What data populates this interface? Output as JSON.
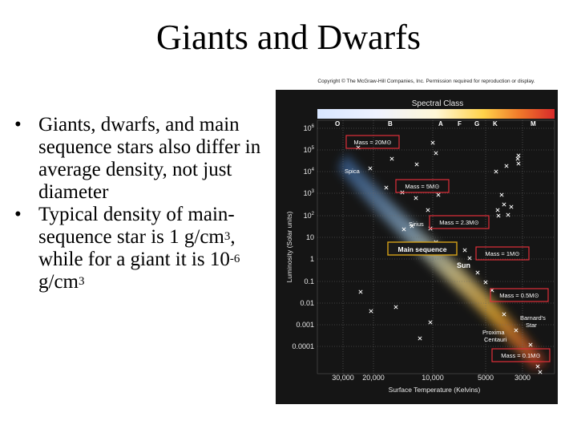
{
  "title": "Giants and Dwarfs",
  "bullets": [
    {
      "text": "Giants, dwarfs, and main sequence stars also differ in average density, not just diameter"
    },
    {
      "pre1": "Typical density of main-sequence star is 1 g/cm",
      "sup1": "3",
      "pre2": ", while for a giant it is 10",
      "sup2": "-6",
      "pre3": " g/cm",
      "sup3": "3"
    }
  ],
  "bullet_char": "•",
  "copyright": "Copyright © The McGraw-Hill Companies, Inc. Permission required for reproduction or display.",
  "diagram": {
    "spectral_title": "Spectral Class",
    "spectral_classes": [
      "O",
      "B",
      "A",
      "F",
      "G",
      "K",
      "M"
    ],
    "y_axis_label": "Luminosity (Solar units)",
    "y_ticks": [
      {
        "base": "10",
        "exp": "6"
      },
      {
        "base": "10",
        "exp": "5"
      },
      {
        "base": "10",
        "exp": "4"
      },
      {
        "base": "10",
        "exp": "3"
      },
      {
        "base": "10",
        "exp": "2"
      },
      {
        "base": "10",
        "exp": ""
      },
      {
        "base": "1",
        "exp": ""
      },
      {
        "base": "0.1",
        "exp": ""
      },
      {
        "base": "0.01",
        "exp": ""
      },
      {
        "base": "0.001",
        "exp": ""
      },
      {
        "base": "0.0001",
        "exp": ""
      }
    ],
    "x_ticks": [
      "30,000",
      "20,000",
      "10,000",
      "5000",
      "3000"
    ],
    "x_axis_label": "Surface Temperature (Kelvins)",
    "mass_boxes": [
      "Mass = 20M⊙",
      "Mass = 5M⊙",
      "Mass = 2.3M⊙",
      "Mass = 1M⊙",
      "Mass = 0.5M⊙",
      "Mass = 0.1M⊙"
    ],
    "main_sequence_label": "Main sequence",
    "star_labels": {
      "spica": "Spica",
      "sirius": "Sirius",
      "sun": "Sun",
      "barnard_1": "Barnard's",
      "barnard_2": "Star",
      "proxima_1": "Proxima",
      "proxima_2": "Centauri"
    },
    "colors": {
      "background": "#151515",
      "box_border": "#e0303a",
      "grid_line": "#6a6a6a",
      "marker": "#ffffff"
    }
  }
}
